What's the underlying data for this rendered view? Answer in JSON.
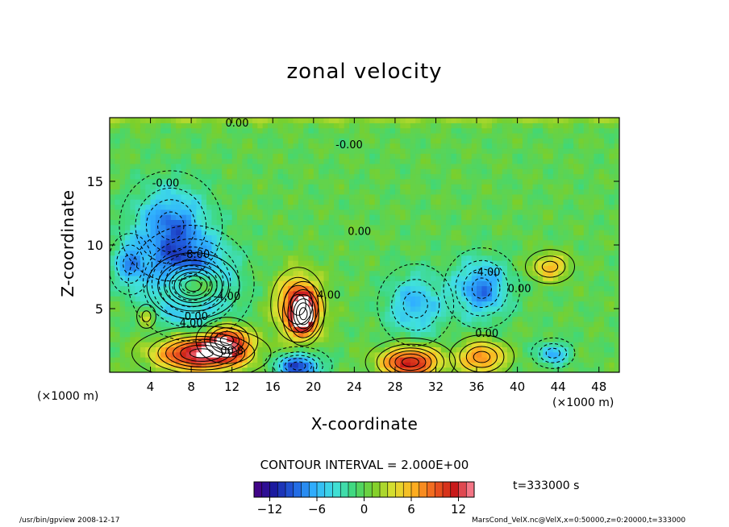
{
  "chart_data": {
    "type": "heatmap",
    "title": "zonal velocity",
    "xlabel": "X-coordinate",
    "ylabel": "Z-coordinate",
    "x_unit_left": "(×1000 m)",
    "x_unit_right": "(×1000 m)",
    "xlim": [
      0,
      50
    ],
    "ylim": [
      0,
      20
    ],
    "xticks": [
      4,
      8,
      12,
      16,
      20,
      24,
      28,
      32,
      36,
      40,
      44,
      48
    ],
    "yticks": [
      5,
      10,
      15
    ],
    "contour_interval_text": "CONTOUR INTERVAL = 2.000E+00",
    "colorbar": {
      "vmin": -14,
      "vmax": 14,
      "ticks": [
        -12,
        -6,
        0,
        6,
        12
      ],
      "tick_labels": [
        "−12",
        "−6",
        "0",
        "6",
        "12"
      ],
      "palette": [
        "#4b0082",
        "#1a1aa0",
        "#2060e0",
        "#30b0ff",
        "#40e0e0",
        "#40d878",
        "#7ccf2a",
        "#e0e030",
        "#ffb020",
        "#f06020",
        "#c81818",
        "#ff8ca0"
      ]
    },
    "contour_labels": [
      {
        "text": "0.00",
        "x": 12.5,
        "y": 19.3
      },
      {
        "text": "-0.00",
        "x": 23.5,
        "y": 17.6
      },
      {
        "text": "-0.00",
        "x": 5.5,
        "y": 14.6
      },
      {
        "text": "0.00",
        "x": 24.5,
        "y": 10.8
      },
      {
        "text": "-8.00",
        "x": 8.5,
        "y": 9.0
      },
      {
        "text": "-4.00",
        "x": 11.5,
        "y": 5.7
      },
      {
        "text": "4.00",
        "x": 21.5,
        "y": 5.8
      },
      {
        "text": "-4.00",
        "x": 37.0,
        "y": 7.6
      },
      {
        "text": "0.00",
        "x": 40.2,
        "y": 6.3
      },
      {
        "text": "0.00",
        "x": 37.0,
        "y": 2.8
      },
      {
        "text": "4.00",
        "x": 8.0,
        "y": 3.6
      },
      {
        "text": "0.00",
        "x": 8.5,
        "y": 4.1
      },
      {
        "text": "00.8",
        "x": 12.0,
        "y": 1.4
      }
    ],
    "features": [
      {
        "value": -8,
        "cx": 6.0,
        "cy": 11.5,
        "rx": 3.5,
        "ry": 3.0
      },
      {
        "value": -14,
        "cx": 8.0,
        "cy": 7.0,
        "rx": 3.8,
        "ry": 2.8
      },
      {
        "value": -6,
        "cx": 2.0,
        "cy": 8.5,
        "rx": 1.6,
        "ry": 1.8
      },
      {
        "value": 14,
        "cx": 8.2,
        "cy": 6.8,
        "rx": 2.8,
        "ry": 1.6
      },
      {
        "value": 9,
        "cx": 18.5,
        "cy": 5.3,
        "rx": 2.2,
        "ry": 2.4
      },
      {
        "value": 12,
        "cx": 19.0,
        "cy": 4.6,
        "rx": 1.3,
        "ry": 1.6
      },
      {
        "value": -6,
        "cx": 30.0,
        "cy": 5.3,
        "rx": 2.8,
        "ry": 2.4
      },
      {
        "value": -8,
        "cx": 36.5,
        "cy": 6.6,
        "rx": 2.6,
        "ry": 2.2
      },
      {
        "value": 6,
        "cx": 43.2,
        "cy": 8.3,
        "rx": 1.8,
        "ry": 1.0
      },
      {
        "value": 14,
        "cx": 9.0,
        "cy": 1.5,
        "rx": 4.2,
        "ry": 1.3
      },
      {
        "value": 10,
        "cx": 11.5,
        "cy": 2.5,
        "rx": 2.0,
        "ry": 1.2
      },
      {
        "value": 12,
        "cx": 29.5,
        "cy": 0.8,
        "rx": 2.8,
        "ry": 1.2
      },
      {
        "value": 8,
        "cx": 36.5,
        "cy": 1.2,
        "rx": 2.2,
        "ry": 1.2
      },
      {
        "value": -10,
        "cx": 18.5,
        "cy": 0.5,
        "rx": 2.2,
        "ry": 1.0
      },
      {
        "value": -6,
        "cx": 43.5,
        "cy": 1.5,
        "rx": 1.6,
        "ry": 0.9
      },
      {
        "value": 4,
        "cx": 3.6,
        "cy": 4.4,
        "rx": 0.8,
        "ry": 0.8
      }
    ]
  },
  "annotations": {
    "time": "t=333000  s",
    "footer_left": "/usr/bin/gpview   2008-12-17",
    "footer_right": "MarsCond_VelX.nc@VelX,x=0:50000,z=0:20000,t=333000"
  }
}
